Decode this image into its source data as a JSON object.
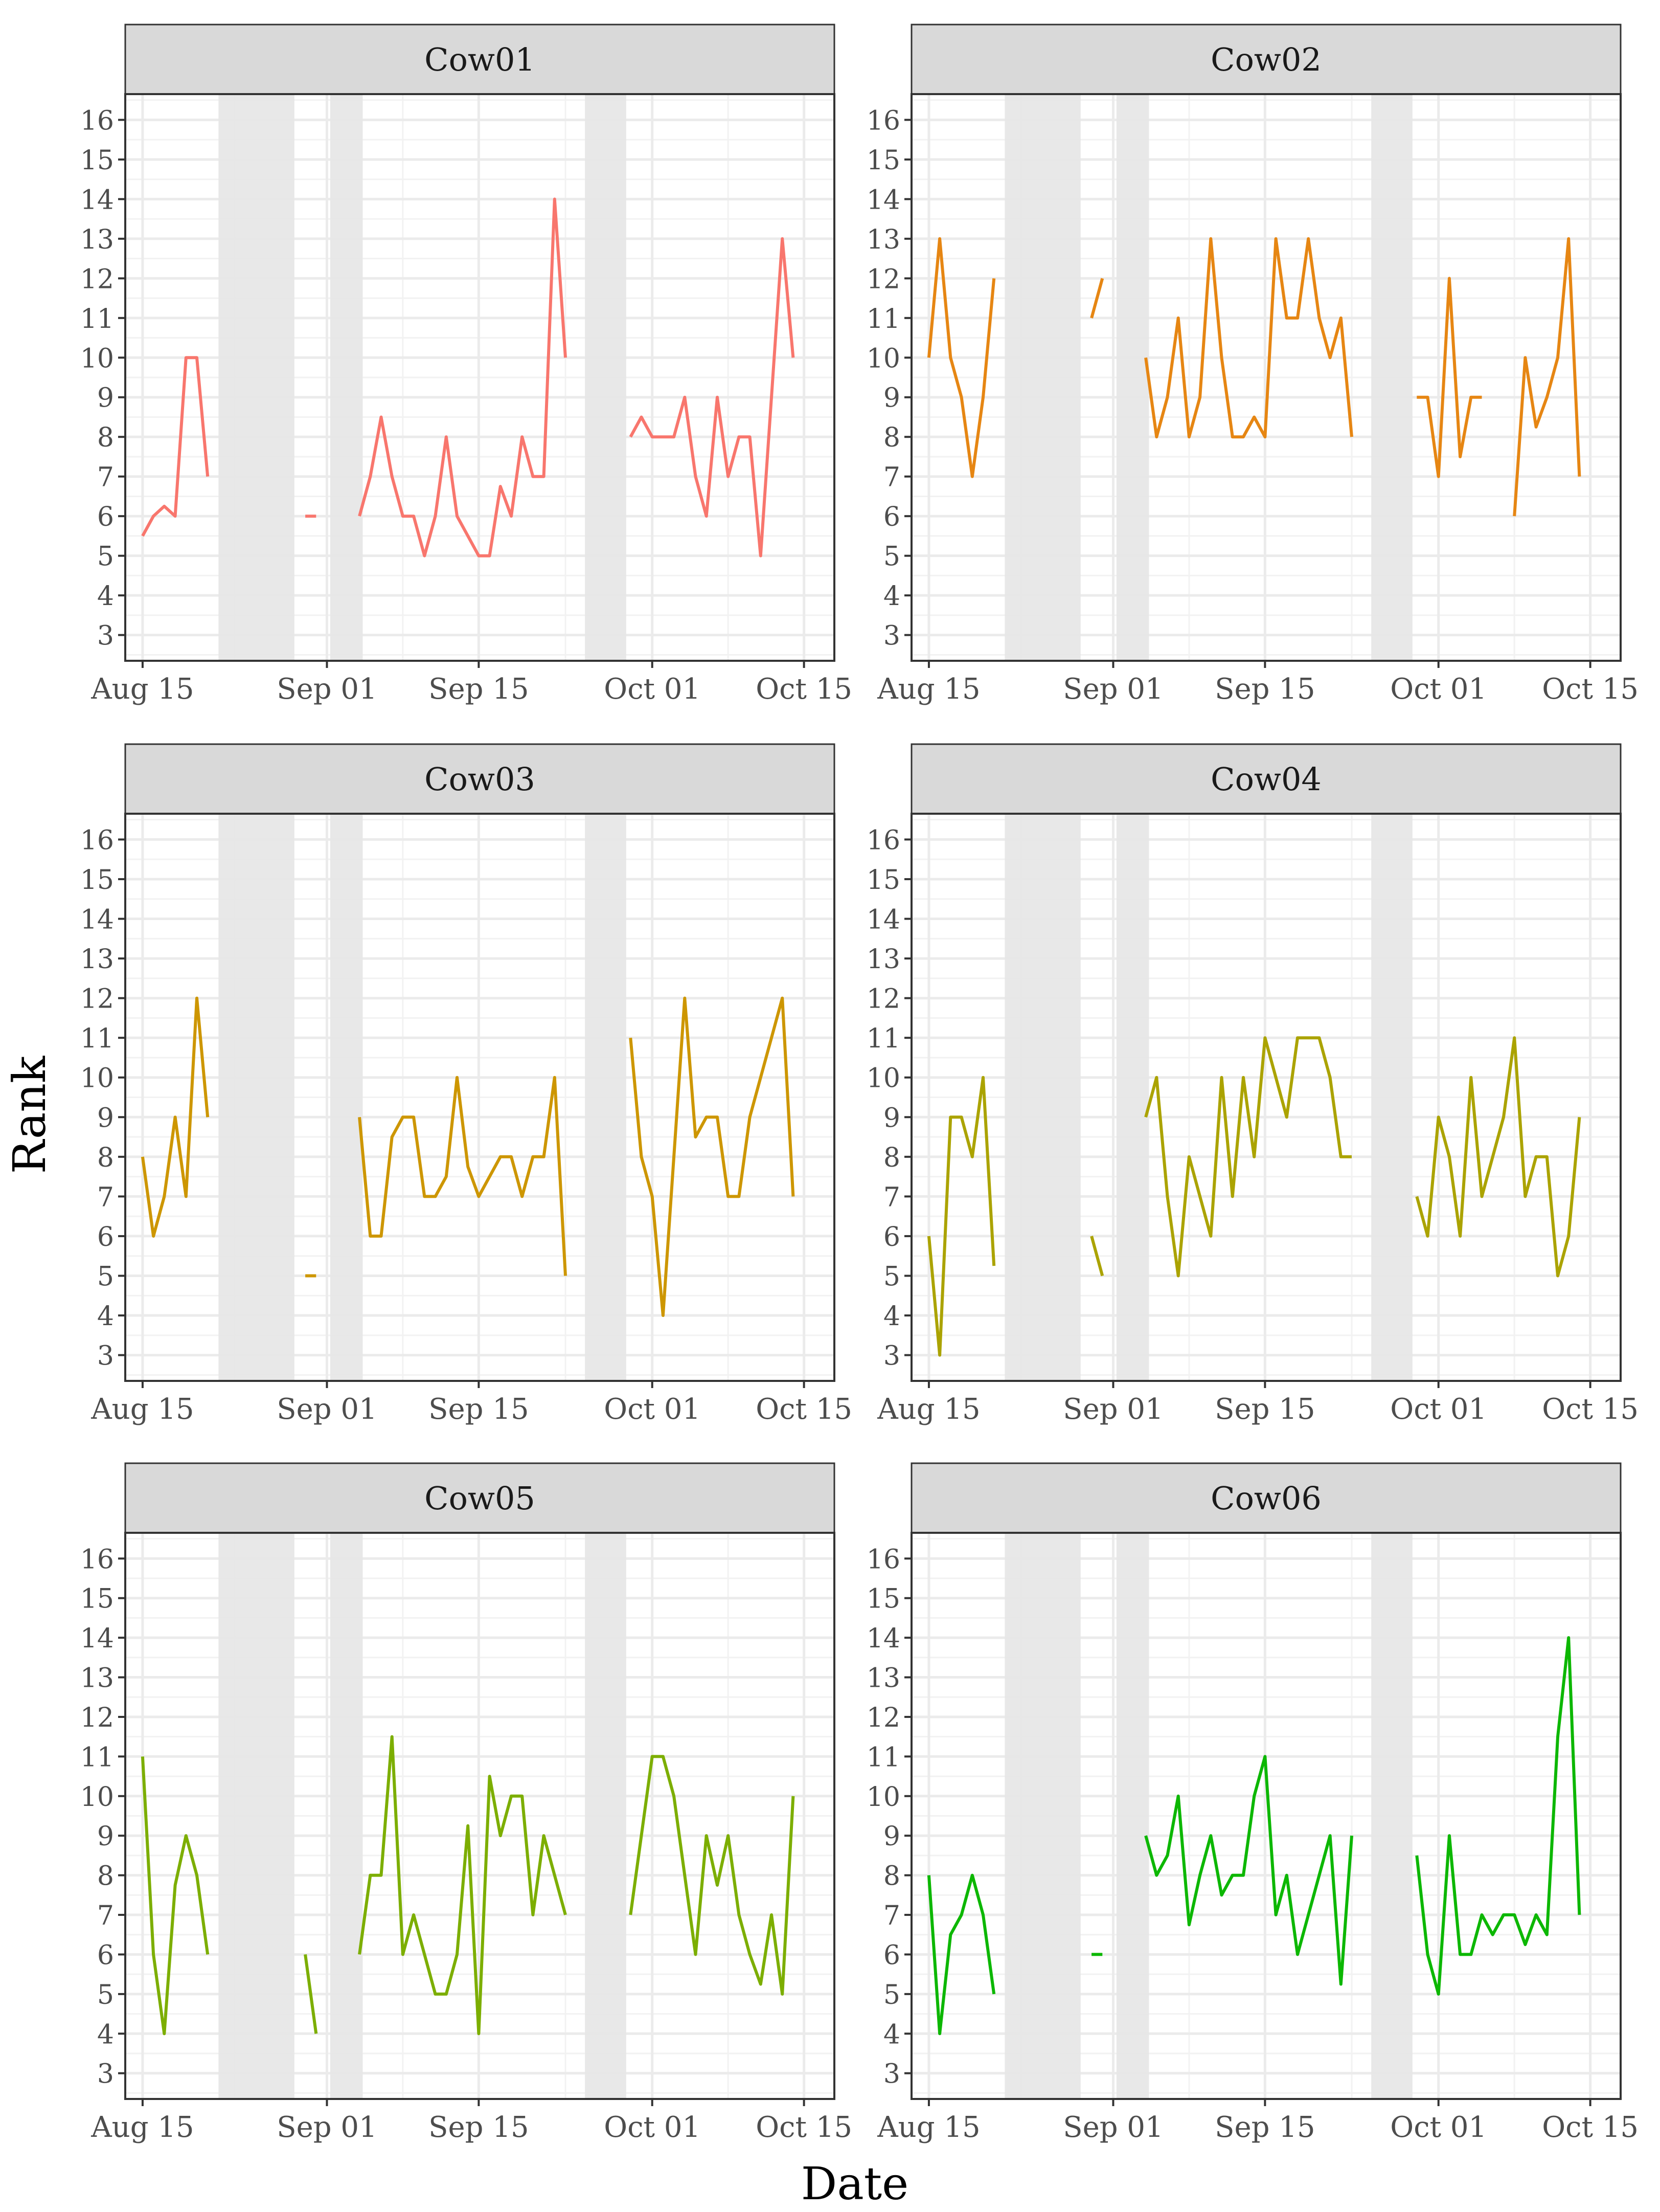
{
  "chart_data": {
    "type": "line",
    "facet_variable": "cow",
    "xlabel": "Date",
    "ylabel": "Rank",
    "ylim": [
      2.35,
      16.65
    ],
    "yticks": [
      3,
      4,
      5,
      6,
      7,
      8,
      9,
      10,
      11,
      12,
      13,
      14,
      15,
      16
    ],
    "x_domain_days": [
      -1.6,
      63.8
    ],
    "x_ticks": [
      {
        "day": 0,
        "label": "Aug 15"
      },
      {
        "day": 17,
        "label": "Sep 01"
      },
      {
        "day": 31,
        "label": "Sep 15"
      },
      {
        "day": 47,
        "label": "Oct 01"
      },
      {
        "day": 61,
        "label": "Oct 15"
      }
    ],
    "x_minor_days": [
      8.5,
      24,
      39,
      54
    ],
    "x_unit": "days since Aug 15",
    "shaded_periods_days": [
      [
        7,
        14
      ],
      [
        17.3,
        20.3
      ],
      [
        40.8,
        44.6
      ]
    ],
    "grid": true,
    "series": [
      {
        "name": "Cow01",
        "color": "#F8766D",
        "points": [
          [
            0,
            5.5
          ],
          [
            1,
            6
          ],
          [
            2,
            6.25
          ],
          [
            3,
            6
          ],
          [
            4,
            10
          ],
          [
            5,
            10
          ],
          [
            6,
            7
          ],
          null,
          [
            15,
            6
          ],
          [
            16,
            6
          ],
          null,
          [
            20,
            6
          ],
          [
            21,
            7
          ],
          [
            22,
            8.5
          ],
          [
            23,
            7
          ],
          [
            24,
            6
          ],
          [
            25,
            6
          ],
          [
            26,
            5
          ],
          [
            27,
            6
          ],
          [
            28,
            8
          ],
          [
            29,
            6
          ],
          [
            30,
            5.5
          ],
          [
            31,
            5
          ],
          [
            32,
            5
          ],
          [
            33,
            6.75
          ],
          [
            34,
            6
          ],
          [
            35,
            8
          ],
          [
            36,
            7
          ],
          [
            37,
            7
          ],
          [
            38,
            14
          ],
          [
            39,
            10
          ],
          null,
          [
            45,
            8
          ],
          [
            46,
            8.5
          ],
          [
            47,
            8
          ],
          [
            48,
            8
          ],
          [
            49,
            8
          ],
          [
            50,
            9
          ],
          [
            51,
            7
          ],
          [
            52,
            6
          ],
          [
            53,
            9
          ],
          [
            54,
            7
          ],
          [
            55,
            8
          ],
          [
            56,
            8
          ],
          [
            57,
            5
          ],
          [
            58,
            9
          ],
          [
            59,
            13
          ],
          [
            60,
            10
          ]
        ]
      },
      {
        "name": "Cow02",
        "color": "#E68613",
        "points": [
          [
            0,
            10
          ],
          [
            1,
            13
          ],
          [
            2,
            10
          ],
          [
            3,
            9
          ],
          [
            4,
            7
          ],
          [
            5,
            9
          ],
          [
            6,
            12
          ],
          null,
          [
            15,
            11
          ],
          [
            16,
            12
          ],
          null,
          [
            20,
            10
          ],
          [
            21,
            8
          ],
          [
            22,
            9
          ],
          [
            23,
            11
          ],
          [
            24,
            8
          ],
          [
            25,
            9
          ],
          [
            26,
            13
          ],
          [
            27,
            10
          ],
          [
            28,
            8
          ],
          [
            29,
            8
          ],
          [
            30,
            8.5
          ],
          [
            31,
            8
          ],
          [
            32,
            13
          ],
          [
            33,
            11
          ],
          [
            34,
            11
          ],
          [
            35,
            13
          ],
          [
            36,
            11
          ],
          [
            37,
            10
          ],
          [
            38,
            11
          ],
          [
            39,
            8
          ],
          null,
          [
            45,
            9
          ],
          [
            46,
            9
          ],
          [
            47,
            7
          ],
          [
            48,
            12
          ],
          [
            49,
            7.5
          ],
          [
            50,
            9
          ],
          [
            51,
            9
          ],
          null,
          [
            54,
            6
          ],
          [
            55,
            10
          ],
          [
            56,
            8.25
          ],
          [
            57,
            9
          ],
          [
            58,
            10
          ],
          [
            59,
            13
          ],
          [
            60,
            7
          ]
        ]
      },
      {
        "name": "Cow03",
        "color": "#CD9600",
        "points": [
          [
            0,
            8
          ],
          [
            1,
            6
          ],
          [
            2,
            7
          ],
          [
            3,
            9
          ],
          [
            4,
            7
          ],
          [
            5,
            12
          ],
          [
            6,
            9
          ],
          null,
          [
            15,
            5
          ],
          [
            16,
            5
          ],
          null,
          [
            20,
            9
          ],
          [
            21,
            6
          ],
          [
            22,
            6
          ],
          [
            23,
            8.5
          ],
          [
            24,
            9
          ],
          [
            25,
            9
          ],
          [
            26,
            7
          ],
          [
            27,
            7
          ],
          [
            28,
            7.5
          ],
          [
            29,
            10
          ],
          [
            30,
            7.75
          ],
          [
            31,
            7
          ],
          [
            32,
            7.5
          ],
          [
            33,
            8
          ],
          [
            34,
            8
          ],
          [
            35,
            7
          ],
          [
            36,
            8
          ],
          [
            37,
            8
          ],
          [
            38,
            10
          ],
          [
            39,
            5
          ],
          null,
          [
            45,
            11
          ],
          [
            46,
            8
          ],
          [
            47,
            7
          ],
          [
            48,
            4
          ],
          [
            49,
            8
          ],
          [
            50,
            12
          ],
          [
            51,
            8.5
          ],
          [
            52,
            9
          ],
          [
            53,
            9
          ],
          [
            54,
            7
          ],
          [
            55,
            7
          ],
          [
            56,
            9
          ],
          [
            59,
            12
          ],
          [
            60,
            7
          ]
        ]
      },
      {
        "name": "Cow04",
        "color": "#ABA300",
        "points": [
          [
            0,
            6
          ],
          [
            1,
            3
          ],
          [
            2,
            9
          ],
          [
            3,
            9
          ],
          [
            4,
            8
          ],
          [
            5,
            10
          ],
          [
            6,
            5.25
          ],
          null,
          [
            15,
            6
          ],
          [
            16,
            5
          ],
          null,
          [
            20,
            9
          ],
          [
            21,
            10
          ],
          [
            22,
            7
          ],
          [
            23,
            5
          ],
          [
            24,
            8
          ],
          [
            26,
            6
          ],
          [
            27,
            10
          ],
          [
            28,
            7
          ],
          [
            29,
            10
          ],
          [
            30,
            8
          ],
          [
            31,
            11
          ],
          [
            33,
            9
          ],
          [
            34,
            11
          ],
          [
            35,
            11
          ],
          [
            36,
            11
          ],
          [
            37,
            10
          ],
          [
            38,
            8
          ],
          [
            39,
            8
          ],
          null,
          [
            45,
            7
          ],
          [
            46,
            6
          ],
          [
            47,
            9
          ],
          [
            48,
            8
          ],
          [
            49,
            6
          ],
          [
            50,
            10
          ],
          [
            51,
            7
          ],
          [
            53,
            9
          ],
          [
            54,
            11
          ],
          [
            55,
            7
          ],
          [
            56,
            8
          ],
          [
            57,
            8
          ],
          [
            58,
            5
          ],
          [
            59,
            6
          ],
          [
            60,
            9
          ]
        ]
      },
      {
        "name": "Cow05",
        "color": "#7CAE00",
        "points": [
          [
            0,
            11
          ],
          [
            1,
            6
          ],
          [
            2,
            4
          ],
          [
            3,
            7.75
          ],
          [
            4,
            9
          ],
          [
            5,
            8
          ],
          [
            6,
            6
          ],
          null,
          [
            15,
            6
          ],
          [
            16,
            4
          ],
          null,
          [
            20,
            6
          ],
          [
            21,
            8
          ],
          [
            22,
            8
          ],
          [
            23,
            11.5
          ],
          [
            24,
            6
          ],
          [
            25,
            7
          ],
          [
            27,
            5
          ],
          [
            28,
            5
          ],
          [
            29,
            6
          ],
          [
            30,
            9.25
          ],
          [
            31,
            4
          ],
          [
            32,
            10.5
          ],
          [
            33,
            9
          ],
          [
            34,
            10
          ],
          [
            35,
            10
          ],
          [
            36,
            7
          ],
          [
            37,
            9
          ],
          [
            39,
            7
          ],
          null,
          [
            45,
            7
          ],
          [
            47,
            11
          ],
          [
            48,
            11
          ],
          [
            49,
            10
          ],
          [
            51,
            6
          ],
          [
            52,
            9
          ],
          [
            53,
            7.75
          ],
          [
            54,
            9
          ],
          [
            55,
            7
          ],
          [
            56,
            6
          ],
          [
            57,
            5.25
          ],
          [
            58,
            7
          ],
          [
            59,
            5
          ],
          [
            60,
            10
          ]
        ]
      },
      {
        "name": "Cow06",
        "color": "#0CB702",
        "points": [
          [
            0,
            8
          ],
          [
            1,
            4
          ],
          [
            2,
            6.5
          ],
          [
            3,
            7
          ],
          [
            4,
            8
          ],
          [
            5,
            7
          ],
          [
            6,
            5
          ],
          null,
          [
            15,
            6
          ],
          [
            16,
            6
          ],
          null,
          [
            20,
            9
          ],
          [
            21,
            8
          ],
          [
            22,
            8.5
          ],
          [
            23,
            10
          ],
          [
            24,
            6.75
          ],
          [
            25,
            8
          ],
          [
            26,
            9
          ],
          [
            27,
            7.5
          ],
          [
            28,
            8
          ],
          [
            29,
            8
          ],
          [
            30,
            10
          ],
          [
            31,
            11
          ],
          [
            32,
            7
          ],
          [
            33,
            8
          ],
          [
            34,
            6
          ],
          [
            37,
            9
          ],
          [
            38,
            5.25
          ],
          [
            39,
            9
          ],
          null,
          [
            45,
            8.5
          ],
          [
            46,
            6
          ],
          [
            47,
            5
          ],
          [
            48,
            9
          ],
          [
            49,
            6
          ],
          [
            50,
            6
          ],
          [
            51,
            7
          ],
          [
            52,
            6.5
          ],
          [
            53,
            7
          ],
          [
            54,
            7
          ],
          [
            55,
            6.25
          ],
          [
            56,
            7
          ],
          [
            57,
            6.5
          ],
          [
            58,
            11.5
          ],
          [
            59,
            14
          ],
          [
            60,
            7
          ]
        ]
      }
    ]
  }
}
